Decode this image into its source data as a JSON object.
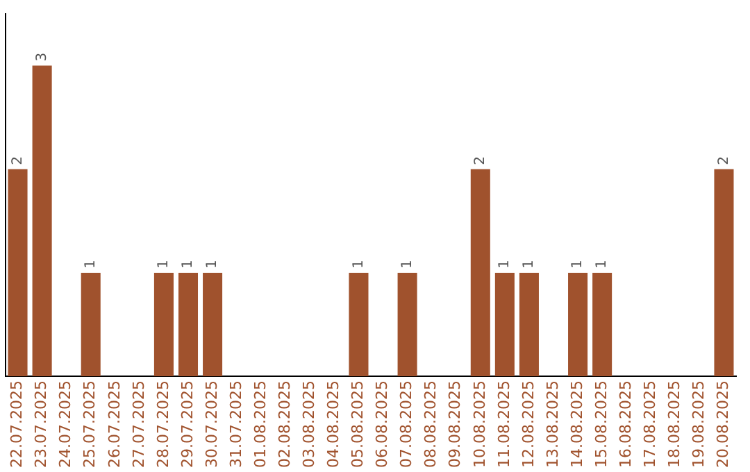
{
  "chart_data": {
    "type": "bar",
    "categories": [
      "22.07.2025",
      "23.07.2025",
      "24.07.2025",
      "25.07.2025",
      "26.07.2025",
      "27.07.2025",
      "28.07.2025",
      "29.07.2025",
      "30.07.2025",
      "31.07.2025",
      "01.08.2025",
      "02.08.2025",
      "03.08.2025",
      "04.08.2025",
      "05.08.2025",
      "06.08.2025",
      "07.08.2025",
      "08.08.2025",
      "09.08.2025",
      "10.08.2025",
      "11.08.2025",
      "12.08.2025",
      "13.08.2025",
      "14.08.2025",
      "15.08.2025",
      "16.08.2025",
      "17.08.2025",
      "18.08.2025",
      "19.08.2025",
      "20.08.2025"
    ],
    "values": [
      2,
      3,
      0,
      1,
      0,
      0,
      1,
      1,
      1,
      0,
      0,
      0,
      0,
      0,
      1,
      0,
      1,
      0,
      0,
      2,
      1,
      1,
      0,
      1,
      1,
      0,
      0,
      0,
      0,
      2
    ],
    "value_labels": [
      "2",
      "3",
      null,
      "1",
      null,
      null,
      "1",
      "1",
      "1",
      null,
      null,
      null,
      null,
      null,
      "1",
      null,
      "1",
      null,
      null,
      "2",
      "1",
      "1",
      null,
      "1",
      "1",
      null,
      null,
      null,
      null,
      "2"
    ],
    "color": "#a0522d",
    "grid": false,
    "legend": false,
    "tick_labels": "x"
  }
}
